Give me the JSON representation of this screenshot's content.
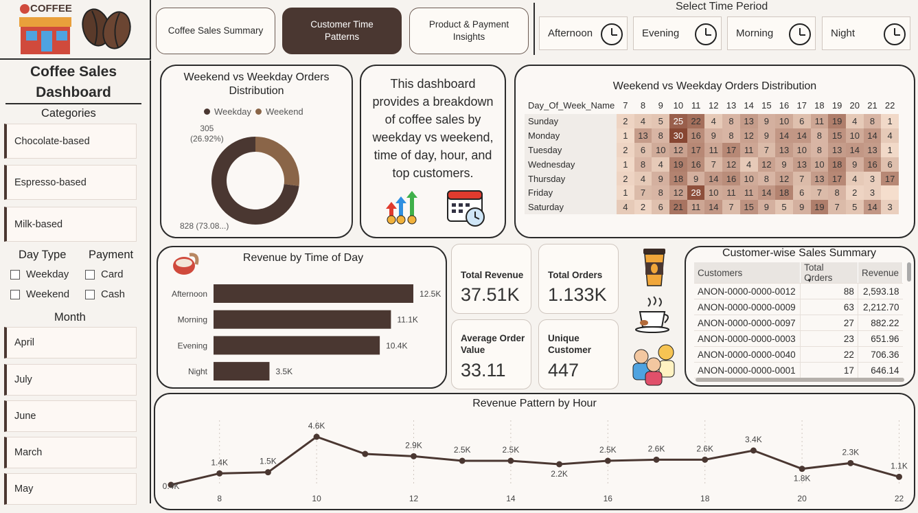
{
  "logo": {
    "text": "COFFEE"
  },
  "nav": {
    "tabs": [
      {
        "label": "Coffee Sales Summary",
        "active": false
      },
      {
        "label": "Customer Time Patterns",
        "active": true
      },
      {
        "label": "Product & Payment Insights",
        "active": false
      }
    ]
  },
  "time_period": {
    "title": "Select Time Period",
    "options": [
      "Afternoon",
      "Evening",
      "Morning",
      "Night"
    ]
  },
  "sidebar": {
    "title": "Coffee Sales Dashboard",
    "categories_header": "Categories",
    "categories": [
      "Chocolate-based",
      "Espresso-based",
      "Milk-based"
    ],
    "day_type_header": "Day Type",
    "day_types": [
      "Weekday",
      "Weekend"
    ],
    "payment_header": "Payment",
    "payments": [
      "Card",
      "Cash"
    ],
    "month_header": "Month",
    "months": [
      "April",
      "July",
      "June",
      "March",
      "May"
    ]
  },
  "donut": {
    "title": "Weekend vs Weekday Orders Distribution",
    "legend": [
      "Weekday",
      "Weekend"
    ],
    "colors": [
      "#4a3731",
      "#8a6548"
    ],
    "label_weekend_1": "305",
    "label_weekend_2": "(26.92%)",
    "label_weekday": "828 (73.08...)"
  },
  "info": {
    "text": "This dashboard provides a breakdown of coffee sales by weekday vs weekend, time of day, hour, and top customers."
  },
  "heatmap": {
    "title": "Weekend vs Weekday Orders Distribution",
    "row_header": "Day_Of_Week_Name",
    "hours": [
      "7",
      "8",
      "9",
      "10",
      "11",
      "12",
      "13",
      "14",
      "15",
      "16",
      "17",
      "18",
      "19",
      "20",
      "21",
      "22"
    ],
    "rows": [
      {
        "day": "Sunday",
        "values": [
          2,
          4,
          5,
          25,
          22,
          4,
          8,
          13,
          9,
          10,
          6,
          11,
          19,
          4,
          8,
          1
        ]
      },
      {
        "day": "Monday",
        "values": [
          1,
          13,
          8,
          30,
          16,
          9,
          8,
          12,
          9,
          14,
          14,
          8,
          15,
          10,
          14,
          4
        ]
      },
      {
        "day": "Tuesday",
        "values": [
          2,
          6,
          10,
          12,
          17,
          11,
          17,
          11,
          7,
          13,
          10,
          8,
          13,
          14,
          13,
          1
        ]
      },
      {
        "day": "Wednesday",
        "values": [
          1,
          8,
          4,
          19,
          16,
          7,
          12,
          4,
          12,
          9,
          13,
          10,
          18,
          9,
          16,
          6
        ]
      },
      {
        "day": "Thursday",
        "values": [
          2,
          4,
          9,
          18,
          9,
          14,
          16,
          10,
          8,
          12,
          7,
          13,
          17,
          4,
          3,
          17
        ]
      },
      {
        "day": "Friday",
        "values": [
          1,
          7,
          8,
          12,
          28,
          10,
          11,
          11,
          14,
          18,
          6,
          7,
          8,
          2,
          3,
          ""
        ]
      },
      {
        "day": "Saturday",
        "values": [
          4,
          2,
          6,
          21,
          11,
          14,
          7,
          15,
          9,
          5,
          9,
          19,
          7,
          5,
          14,
          3
        ]
      }
    ]
  },
  "revenue_tod": {
    "title": "Revenue by Time of Day",
    "chart_data": {
      "type": "bar",
      "categories": [
        "Afternoon",
        "Morning",
        "Evening",
        "Night"
      ],
      "values": [
        12.5,
        11.1,
        10.4,
        3.5
      ],
      "labels": [
        "12.5K",
        "11.1K",
        "10.4K",
        "3.5K"
      ]
    }
  },
  "kpis": [
    {
      "label": "Total Revenue",
      "value": "37.51K"
    },
    {
      "label": "Total Orders",
      "value": "1.133K"
    },
    {
      "label": "Average Order Value",
      "value": "33.11"
    },
    {
      "label": "Unique Customer",
      "value": "447"
    }
  ],
  "customers": {
    "title": "Customer-wise Sales Summary",
    "columns": [
      "Customers",
      "Total Orders",
      "Revenue"
    ],
    "rows": [
      [
        "ANON-0000-0000-0012",
        "88",
        "2,593.18"
      ],
      [
        "ANON-0000-0000-0009",
        "63",
        "2,212.70"
      ],
      [
        "ANON-0000-0000-0097",
        "27",
        "882.22"
      ],
      [
        "ANON-0000-0000-0003",
        "23",
        "651.96"
      ],
      [
        "ANON-0000-0000-0040",
        "22",
        "706.36"
      ],
      [
        "ANON-0000-0000-0001",
        "17",
        "646.14"
      ]
    ]
  },
  "hourly": {
    "title": "Revenue Pattern by Hour",
    "chart_data": {
      "type": "line",
      "x": [
        7,
        8,
        9,
        10,
        11,
        12,
        13,
        14,
        15,
        16,
        17,
        18,
        19,
        20,
        21,
        22
      ],
      "values": [
        0.4,
        1.4,
        1.5,
        4.6,
        3.1,
        2.9,
        2.5,
        2.5,
        2.2,
        2.5,
        2.6,
        2.6,
        3.4,
        1.8,
        2.3,
        1.1
      ],
      "labels": [
        "0.4K",
        "1.4K",
        "1.5K",
        "4.6K",
        "",
        "2.9K",
        "2.5K",
        "2.5K",
        "2.2K",
        "2.5K",
        "2.6K",
        "2.6K",
        "3.4K",
        "1.8K",
        "2.3K",
        "1.1K"
      ],
      "x_ticks": [
        8,
        10,
        12,
        14,
        16,
        18,
        20,
        22
      ]
    }
  }
}
